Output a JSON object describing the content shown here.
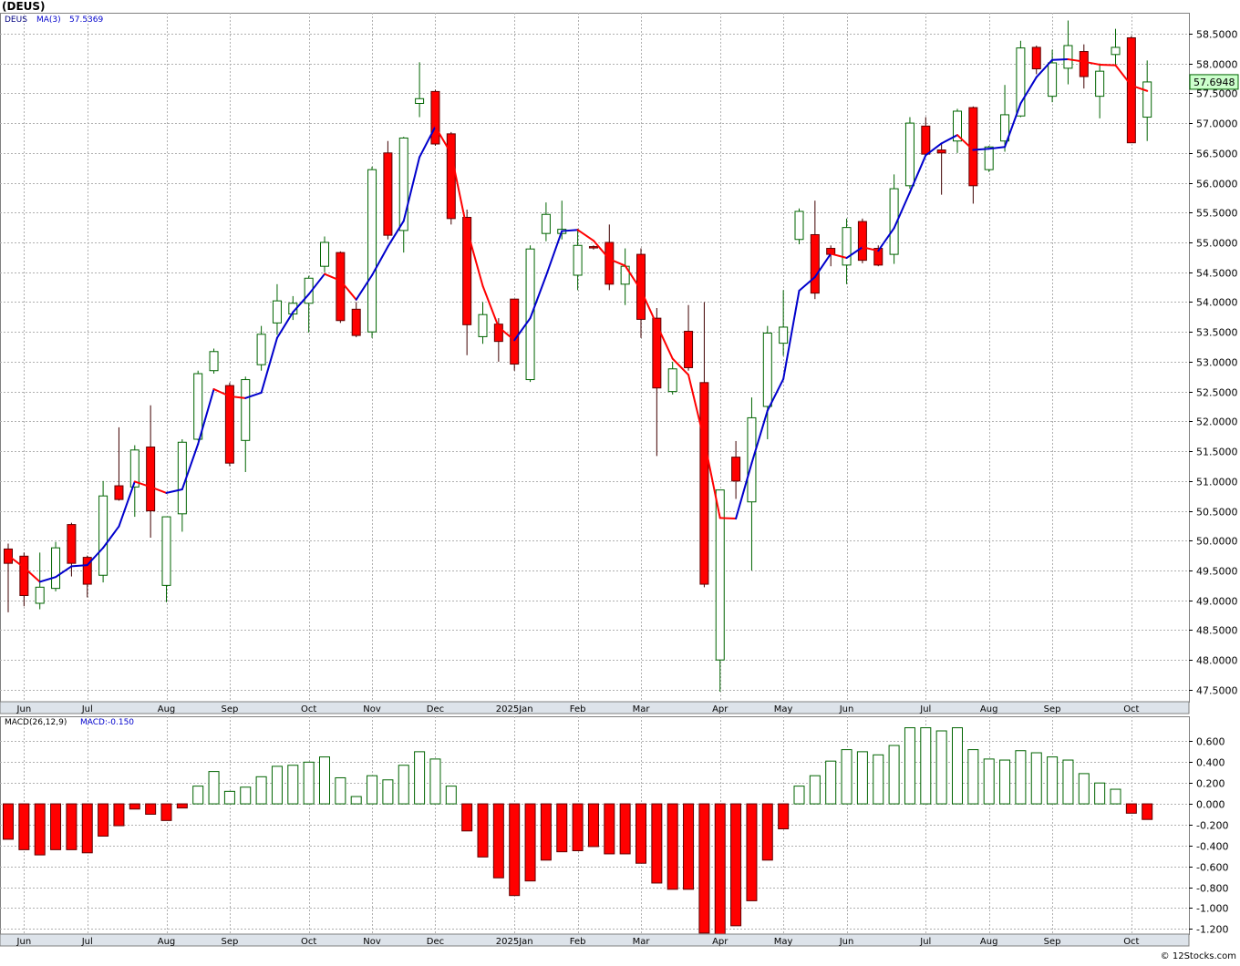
{
  "ticker_title": "(DEUS)",
  "credit": "© 12Stocks.com",
  "price_panel": {
    "ticker_label": "DEUS",
    "ma_label": "MA(3)",
    "ma_value": "57.5369",
    "last_price_label": "57.6948",
    "y_ticks": [
      "47.5000",
      "48.0000",
      "48.5000",
      "49.0000",
      "49.5000",
      "50.0000",
      "50.5000",
      "51.0000",
      "51.5000",
      "52.0000",
      "52.5000",
      "53.0000",
      "53.5000",
      "54.0000",
      "54.5000",
      "55.0000",
      "55.5000",
      "56.0000",
      "56.5000",
      "57.0000",
      "57.5000",
      "58.0000",
      "58.5000"
    ]
  },
  "macd_panel": {
    "label": "MACD(26,12,9)",
    "value_label": "MACD:-0.150",
    "y_ticks": [
      "0.600",
      "0.400",
      "0.200",
      "0.000",
      "-0.200",
      "-0.400",
      "-0.600",
      "-0.800",
      "-1.000",
      "-1.200"
    ]
  },
  "x_axis_labels": [
    "Jun",
    "Jul",
    "Aug",
    "Sep",
    "Oct",
    "Nov",
    "Dec",
    "2025Jan",
    "Feb",
    "Mar",
    "Apr",
    "May",
    "Jun",
    "Jul",
    "Aug",
    "Sep",
    "Oct"
  ],
  "colors": {
    "up": "#006400",
    "down": "#ff0000",
    "ma_up": "#0000cc",
    "ma_down": "#ff0000",
    "grid": "#b0b0b0",
    "axis_bg": "#dde3ea"
  },
  "chart_data": [
    {
      "type": "candlestick",
      "title": "DEUS",
      "period": "weekly",
      "ylim": [
        47.3,
        58.85
      ],
      "month_labels": [
        "Jun",
        "Jul",
        "Aug",
        "Sep",
        "Oct",
        "Nov",
        "Dec",
        "2025Jan",
        "Feb",
        "Mar",
        "Apr",
        "May",
        "Jun",
        "Jul",
        "Aug",
        "Sep",
        "Oct"
      ],
      "month_label_weeks": [
        1,
        5,
        10,
        14,
        19,
        23,
        27,
        32,
        36,
        40,
        45,
        49,
        53,
        58,
        62,
        66,
        71
      ],
      "candles": [
        {
          "o": 49.86,
          "h": 49.95,
          "l": 48.8,
          "c": 49.62
        },
        {
          "o": 49.74,
          "h": 49.8,
          "l": 48.9,
          "c": 49.08
        },
        {
          "o": 48.95,
          "h": 49.8,
          "l": 48.85,
          "c": 49.22
        },
        {
          "o": 49.2,
          "h": 49.98,
          "l": 49.15,
          "c": 49.88
        },
        {
          "o": 50.27,
          "h": 50.3,
          "l": 49.4,
          "c": 49.62
        },
        {
          "o": 49.72,
          "h": 49.75,
          "l": 49.05,
          "c": 49.27
        },
        {
          "o": 49.42,
          "h": 51.0,
          "l": 49.3,
          "c": 50.75
        },
        {
          "o": 50.92,
          "h": 51.9,
          "l": 50.67,
          "c": 50.69
        },
        {
          "o": 50.9,
          "h": 51.6,
          "l": 50.4,
          "c": 51.52
        },
        {
          "o": 51.57,
          "h": 52.27,
          "l": 50.05,
          "c": 50.5
        },
        {
          "o": 49.25,
          "h": 50.4,
          "l": 48.97,
          "c": 50.4
        },
        {
          "o": 50.45,
          "h": 51.7,
          "l": 50.15,
          "c": 51.65
        },
        {
          "o": 51.7,
          "h": 52.85,
          "l": 51.68,
          "c": 52.8
        },
        {
          "o": 52.85,
          "h": 53.22,
          "l": 52.8,
          "c": 53.17
        },
        {
          "o": 52.6,
          "h": 52.65,
          "l": 51.25,
          "c": 51.3
        },
        {
          "o": 51.68,
          "h": 52.75,
          "l": 51.15,
          "c": 52.7
        },
        {
          "o": 52.95,
          "h": 53.6,
          "l": 52.85,
          "c": 53.46
        },
        {
          "o": 53.65,
          "h": 54.3,
          "l": 53.45,
          "c": 54.02
        },
        {
          "o": 53.8,
          "h": 54.1,
          "l": 53.7,
          "c": 53.98
        },
        {
          "o": 53.98,
          "h": 54.44,
          "l": 53.49,
          "c": 54.4
        },
        {
          "o": 54.6,
          "h": 55.1,
          "l": 54.5,
          "c": 55.0
        },
        {
          "o": 54.83,
          "h": 54.85,
          "l": 53.65,
          "c": 53.69
        },
        {
          "o": 53.88,
          "h": 54.0,
          "l": 53.41,
          "c": 53.44
        },
        {
          "o": 53.5,
          "h": 56.27,
          "l": 53.4,
          "c": 56.22
        },
        {
          "o": 56.5,
          "h": 56.7,
          "l": 55.05,
          "c": 55.12
        },
        {
          "o": 55.2,
          "h": 56.77,
          "l": 54.83,
          "c": 56.75
        },
        {
          "o": 57.33,
          "h": 58.02,
          "l": 57.1,
          "c": 57.41
        },
        {
          "o": 57.53,
          "h": 57.56,
          "l": 56.62,
          "c": 56.65
        },
        {
          "o": 56.82,
          "h": 56.85,
          "l": 55.3,
          "c": 55.4
        },
        {
          "o": 55.42,
          "h": 55.55,
          "l": 53.11,
          "c": 53.62
        },
        {
          "o": 53.42,
          "h": 54.0,
          "l": 53.3,
          "c": 53.79
        },
        {
          "o": 53.63,
          "h": 53.73,
          "l": 53.0,
          "c": 53.34
        },
        {
          "o": 54.05,
          "h": 54.05,
          "l": 52.85,
          "c": 52.96
        },
        {
          "o": 52.7,
          "h": 54.95,
          "l": 52.66,
          "c": 54.89
        },
        {
          "o": 55.15,
          "h": 55.67,
          "l": 55.02,
          "c": 55.47
        },
        {
          "o": 55.15,
          "h": 55.7,
          "l": 55.05,
          "c": 55.22
        },
        {
          "o": 54.45,
          "h": 55.23,
          "l": 54.2,
          "c": 54.95
        },
        {
          "o": 54.93,
          "h": 54.95,
          "l": 54.88,
          "c": 54.92
        },
        {
          "o": 55.0,
          "h": 55.3,
          "l": 54.2,
          "c": 54.3
        },
        {
          "o": 54.3,
          "h": 54.9,
          "l": 53.95,
          "c": 54.6
        },
        {
          "o": 54.8,
          "h": 54.9,
          "l": 53.4,
          "c": 53.71
        },
        {
          "o": 53.73,
          "h": 53.9,
          "l": 51.42,
          "c": 52.56
        },
        {
          "o": 52.5,
          "h": 53.0,
          "l": 52.45,
          "c": 52.88
        },
        {
          "o": 53.51,
          "h": 53.95,
          "l": 52.85,
          "c": 52.9
        },
        {
          "o": 52.65,
          "h": 54.0,
          "l": 49.22,
          "c": 49.27
        },
        {
          "o": 48.0,
          "h": 50.8,
          "l": 47.47,
          "c": 50.85
        },
        {
          "o": 51.4,
          "h": 51.67,
          "l": 50.7,
          "c": 51.0
        },
        {
          "o": 50.65,
          "h": 52.4,
          "l": 49.5,
          "c": 52.06
        },
        {
          "o": 52.25,
          "h": 53.6,
          "l": 51.7,
          "c": 53.48
        },
        {
          "o": 53.31,
          "h": 54.2,
          "l": 53.1,
          "c": 53.58
        },
        {
          "o": 55.05,
          "h": 55.57,
          "l": 54.97,
          "c": 55.52
        },
        {
          "o": 55.13,
          "h": 55.7,
          "l": 54.05,
          "c": 54.15
        },
        {
          "o": 54.9,
          "h": 54.95,
          "l": 54.6,
          "c": 54.8
        },
        {
          "o": 54.62,
          "h": 55.4,
          "l": 54.3,
          "c": 55.25
        },
        {
          "o": 55.35,
          "h": 55.4,
          "l": 54.65,
          "c": 54.7
        },
        {
          "o": 54.9,
          "h": 54.95,
          "l": 54.6,
          "c": 54.62
        },
        {
          "o": 54.8,
          "h": 56.14,
          "l": 54.64,
          "c": 55.9
        },
        {
          "o": 55.95,
          "h": 57.1,
          "l": 55.9,
          "c": 57.0
        },
        {
          "o": 56.95,
          "h": 57.1,
          "l": 56.45,
          "c": 56.48
        },
        {
          "o": 56.55,
          "h": 56.65,
          "l": 55.8,
          "c": 56.5
        },
        {
          "o": 56.7,
          "h": 57.24,
          "l": 56.5,
          "c": 57.2
        },
        {
          "o": 57.26,
          "h": 57.28,
          "l": 55.65,
          "c": 55.95
        },
        {
          "o": 56.22,
          "h": 56.62,
          "l": 56.18,
          "c": 56.6
        },
        {
          "o": 56.7,
          "h": 57.64,
          "l": 56.52,
          "c": 57.14
        },
        {
          "o": 57.12,
          "h": 58.38,
          "l": 57.1,
          "c": 58.26
        },
        {
          "o": 58.27,
          "h": 58.3,
          "l": 57.82,
          "c": 57.91
        },
        {
          "o": 57.45,
          "h": 58.23,
          "l": 57.35,
          "c": 58.01
        },
        {
          "o": 57.92,
          "h": 58.72,
          "l": 57.65,
          "c": 58.3
        },
        {
          "o": 58.2,
          "h": 58.32,
          "l": 57.58,
          "c": 57.78
        },
        {
          "o": 57.45,
          "h": 58.0,
          "l": 57.08,
          "c": 57.87
        },
        {
          "o": 58.15,
          "h": 58.58,
          "l": 57.95,
          "c": 58.27
        },
        {
          "o": 58.43,
          "h": 58.46,
          "l": 56.68,
          "c": 56.67
        },
        {
          "o": 57.1,
          "h": 58.05,
          "l": 56.7,
          "c": 57.69
        }
      ],
      "ma3": [
        49.75,
        49.55,
        49.31,
        49.39,
        49.57,
        49.59,
        49.88,
        50.24,
        50.99,
        50.9,
        50.8,
        50.86,
        51.62,
        52.54,
        52.42,
        52.39,
        52.48,
        53.4,
        53.83,
        54.13,
        54.47,
        54.36,
        54.04,
        54.45,
        54.93,
        55.36,
        56.43,
        56.94,
        56.49,
        55.22,
        54.27,
        53.58,
        53.36,
        53.73,
        54.44,
        55.19,
        55.21,
        55.03,
        54.72,
        54.61,
        54.2,
        53.62,
        53.05,
        52.78,
        51.68,
        50.38,
        50.37,
        51.3,
        52.18,
        52.71,
        54.19,
        54.42,
        54.81,
        54.74,
        54.92,
        54.86,
        55.24,
        55.84,
        56.46,
        56.66,
        56.8,
        56.55,
        56.57,
        56.6,
        57.33,
        57.77,
        58.06,
        58.07,
        58.03,
        57.98,
        57.97,
        57.63,
        57.54
      ]
    },
    {
      "type": "bar",
      "title": "MACD(26,12,9)",
      "ylim": [
        -1.25,
        0.84
      ],
      "values": [
        -0.34,
        -0.44,
        -0.49,
        -0.44,
        -0.44,
        -0.47,
        -0.31,
        -0.21,
        -0.05,
        -0.1,
        -0.16,
        -0.04,
        0.17,
        0.31,
        0.12,
        0.16,
        0.26,
        0.36,
        0.37,
        0.4,
        0.45,
        0.25,
        0.07,
        0.27,
        0.23,
        0.37,
        0.5,
        0.43,
        0.17,
        -0.26,
        -0.51,
        -0.71,
        -0.88,
        -0.74,
        -0.54,
        -0.46,
        -0.45,
        -0.41,
        -0.48,
        -0.48,
        -0.57,
        -0.76,
        -0.82,
        -0.82,
        -1.24,
        -1.32,
        -1.17,
        -0.93,
        -0.54,
        -0.24,
        0.17,
        0.27,
        0.41,
        0.52,
        0.5,
        0.47,
        0.56,
        0.73,
        0.73,
        0.7,
        0.73,
        0.52,
        0.43,
        0.42,
        0.51,
        0.49,
        0.45,
        0.42,
        0.29,
        0.2,
        0.14,
        -0.09,
        -0.15
      ]
    }
  ]
}
